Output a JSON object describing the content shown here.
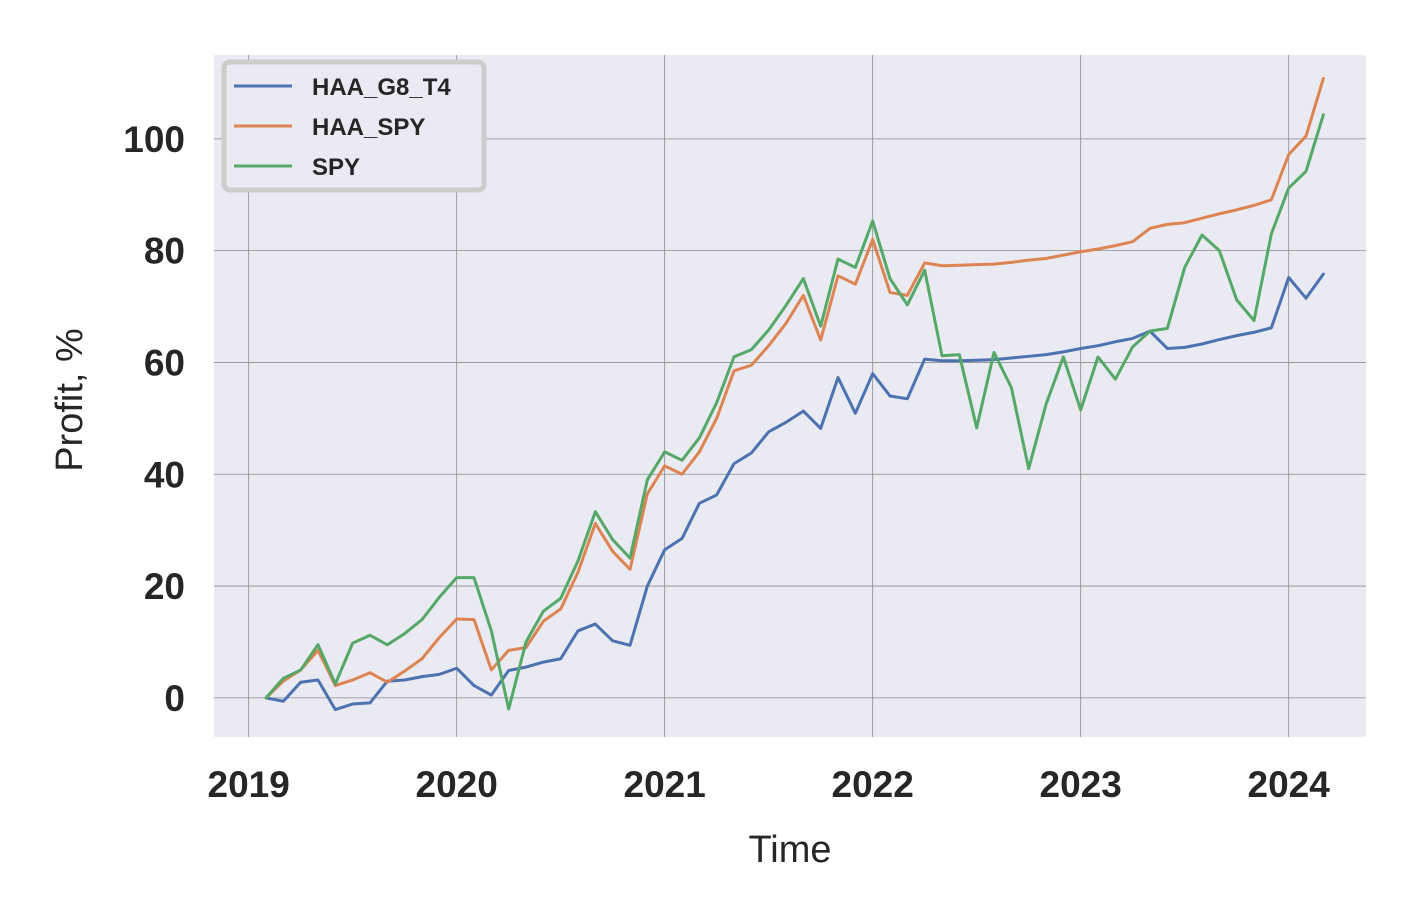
{
  "chart_data": {
    "type": "line",
    "xlabel": "Time",
    "ylabel": "Profit, %",
    "x_ticks": [
      "2019",
      "2020",
      "2021",
      "2022",
      "2023",
      "2024"
    ],
    "y_ticks": [
      "0",
      "20",
      "40",
      "60",
      "80",
      "100"
    ],
    "xlim": [
      "2018-11-01",
      "2024-05-15"
    ],
    "ylim": [
      -7,
      115
    ],
    "grid": true,
    "legend_position": "top-left",
    "x": [
      "2019-02",
      "2019-03",
      "2019-04",
      "2019-05",
      "2019-06",
      "2019-07",
      "2019-08",
      "2019-09",
      "2019-10",
      "2019-11",
      "2019-12",
      "2020-01",
      "2020-02",
      "2020-03",
      "2020-04",
      "2020-05",
      "2020-06",
      "2020-07",
      "2020-08",
      "2020-09",
      "2020-10",
      "2020-11",
      "2020-12",
      "2021-01",
      "2021-02",
      "2021-03",
      "2021-04",
      "2021-05",
      "2021-06",
      "2021-07",
      "2021-08",
      "2021-09",
      "2021-10",
      "2021-11",
      "2021-12",
      "2022-01",
      "2022-02",
      "2022-03",
      "2022-04",
      "2022-05",
      "2022-06",
      "2022-07",
      "2022-08",
      "2022-09",
      "2022-10",
      "2022-11",
      "2022-12",
      "2023-01",
      "2023-02",
      "2023-03",
      "2023-04",
      "2023-05",
      "2023-06",
      "2023-07",
      "2023-08",
      "2023-09",
      "2023-10",
      "2023-11",
      "2023-12",
      "2024-01",
      "2024-02",
      "2024-03"
    ],
    "series": [
      {
        "name": "HAA_G8_T4",
        "color": "#4c72b0",
        "values": [
          0,
          -0.6,
          2.8,
          3.2,
          -2.1,
          -1.1,
          -0.9,
          3.0,
          3.2,
          3.8,
          4.2,
          5.3,
          2.2,
          0.5,
          4.9,
          5.5,
          6.4,
          7.0,
          12.0,
          13.2,
          10.2,
          9.4,
          20.0,
          26.5,
          28.5,
          34.8,
          36.3,
          41.9,
          43.8,
          47.6,
          49.3,
          51.3,
          48.2,
          57.3,
          50.9,
          58.0,
          54.0,
          53.5,
          60.6,
          60.3,
          60.3,
          60.4,
          60.5,
          60.8,
          61.1,
          61.4,
          61.9,
          62.5,
          63.0,
          63.7,
          64.3,
          65.6,
          62.5,
          62.7,
          63.3,
          64.1,
          64.8,
          65.4,
          66.2,
          75.2,
          71.5,
          75.8
        ]
      },
      {
        "name": "HAA_SPY",
        "color": "#dd8452",
        "values": [
          0,
          3.0,
          5.0,
          8.5,
          2.2,
          3.2,
          4.5,
          2.8,
          4.8,
          7.0,
          10.8,
          14.1,
          14.0,
          5.0,
          8.5,
          9.0,
          13.7,
          15.9,
          22.5,
          31.2,
          26.2,
          23.0,
          36.5,
          41.5,
          40.0,
          44.0,
          50.0,
          58.5,
          59.5,
          63.0,
          67.0,
          72.0,
          64.0,
          75.5,
          74.0,
          82.0,
          72.5,
          72.0,
          77.8,
          77.3,
          77.4,
          77.5,
          77.6,
          77.9,
          78.3,
          78.6,
          79.2,
          79.8,
          80.3,
          80.9,
          81.6,
          84.0,
          84.7,
          85.0,
          85.8,
          86.6,
          87.3,
          88.1,
          89.1,
          97.2,
          100.5,
          110.8
        ]
      },
      {
        "name": "SPY",
        "color": "#55a868",
        "values": [
          0,
          3.5,
          5.0,
          9.5,
          2.5,
          9.8,
          11.2,
          9.5,
          11.5,
          14.0,
          18.0,
          21.5,
          21.5,
          12.0,
          -2.0,
          10.0,
          15.5,
          17.8,
          24.5,
          33.3,
          28.3,
          25.0,
          39.0,
          44.0,
          42.5,
          46.5,
          52.8,
          61.0,
          62.3,
          65.8,
          70.2,
          75.0,
          66.5,
          78.5,
          77.0,
          85.3,
          75.0,
          70.3,
          76.5,
          61.2,
          61.4,
          48.3,
          61.8,
          55.5,
          41.0,
          52.5,
          61.0,
          51.5,
          61.0,
          57.0,
          62.8,
          65.6,
          66.1,
          77.0,
          82.8,
          80.0,
          71.2,
          67.5,
          83.0,
          91.2,
          94.2,
          104.3
        ]
      }
    ]
  }
}
